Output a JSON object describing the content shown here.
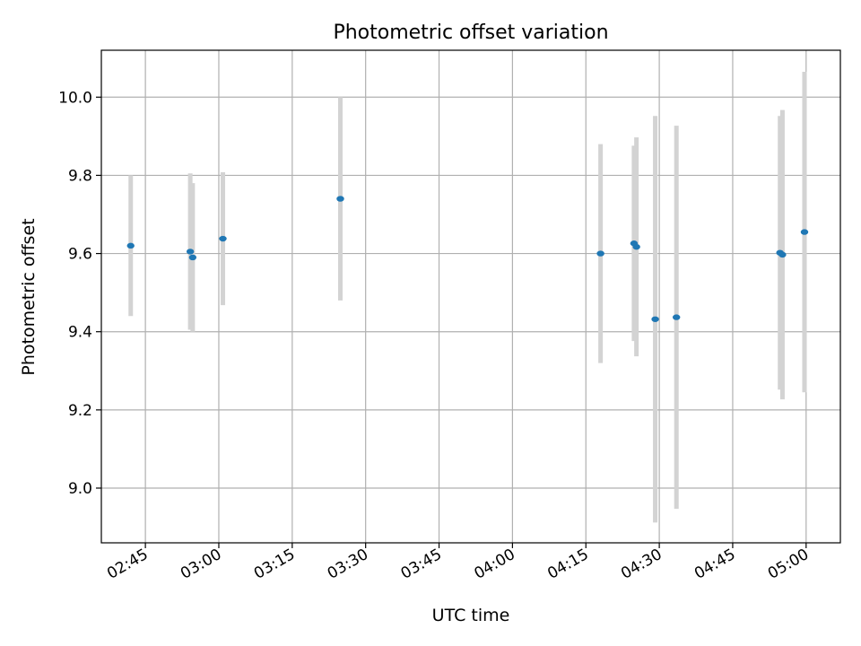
{
  "chart_data": {
    "type": "scatter",
    "title": "Photometric offset variation",
    "xlabel": "UTC time",
    "ylabel": "Photometric offset",
    "x_tick_labels": [
      "02:45",
      "03:00",
      "03:15",
      "03:30",
      "03:45",
      "04:00",
      "04:15",
      "04:30",
      "04:45",
      "05:00"
    ],
    "y_tick_labels": [
      "9.0",
      "9.2",
      "9.4",
      "9.6",
      "9.8",
      "10.0"
    ],
    "y_ticks": [
      9.0,
      9.2,
      9.4,
      9.6,
      9.8,
      10.0
    ],
    "xlim": [
      "02:36:00",
      "05:07:00"
    ],
    "ylim": [
      8.86,
      10.12
    ],
    "grid": true,
    "colors": {
      "point": "#1f77b4",
      "errorbar": "#d3d3d3",
      "grid": "#b0b0b0"
    },
    "points": [
      {
        "x": "02:42:00",
        "y": 9.62,
        "yerr": 0.18
      },
      {
        "x": "02:54:10",
        "y": 9.605,
        "yerr": 0.2
      },
      {
        "x": "02:54:40",
        "y": 9.59,
        "yerr": 0.19
      },
      {
        "x": "03:00:50",
        "y": 9.638,
        "yerr": 0.17
      },
      {
        "x": "03:24:50",
        "y": 9.74,
        "yerr": 0.26
      },
      {
        "x": "04:18:00",
        "y": 9.6,
        "yerr": 0.28
      },
      {
        "x": "04:24:50",
        "y": 9.626,
        "yerr": 0.25
      },
      {
        "x": "04:25:20",
        "y": 9.617,
        "yerr": 0.28
      },
      {
        "x": "04:29:10",
        "y": 9.432,
        "yerr": 0.52
      },
      {
        "x": "04:33:30",
        "y": 9.437,
        "yerr": 0.49
      },
      {
        "x": "04:54:40",
        "y": 9.602,
        "yerr": 0.35
      },
      {
        "x": "04:55:10",
        "y": 9.597,
        "yerr": 0.37
      },
      {
        "x": "04:59:40",
        "y": 9.655,
        "yerr": 0.41
      }
    ]
  }
}
